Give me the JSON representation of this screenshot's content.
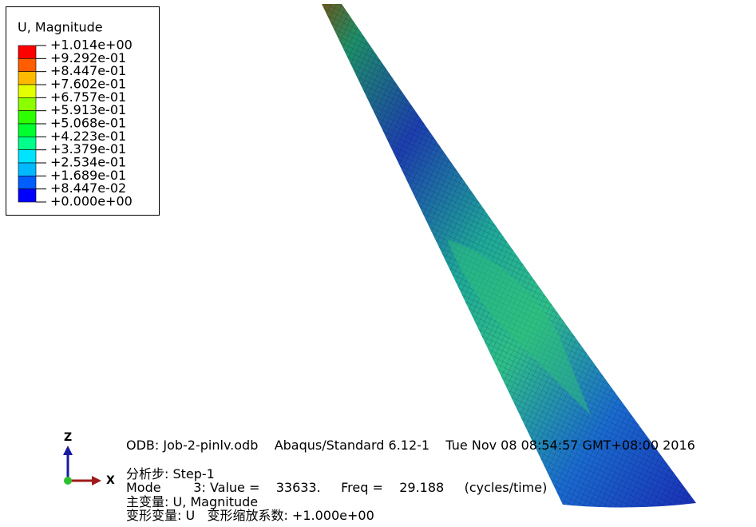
{
  "legend": {
    "title": "U, Magnitude",
    "labels": [
      "+1.014e+00",
      "+9.292e-01",
      "+8.447e-01",
      "+7.602e-01",
      "+6.757e-01",
      "+5.913e-01",
      "+5.068e-01",
      "+4.223e-01",
      "+3.379e-01",
      "+2.534e-01",
      "+1.689e-01",
      "+8.447e-02",
      "+0.000e+00"
    ],
    "colors": [
      "#ff0000",
      "#ff5d00",
      "#ffb900",
      "#e3ff00",
      "#8bff00",
      "#2eff00",
      "#00ff2e",
      "#00ff8b",
      "#00e3ff",
      "#00b9ff",
      "#005dff",
      "#0000ff"
    ]
  },
  "triad": {
    "z": "Z",
    "x": "X"
  },
  "info": {
    "odb": "ODB: Job-2-pinlv.odb    Abaqus/Standard 6.12-1    Tue Nov 08 08:54:57 GMT+08:00 2016",
    "step": "分析步: Step-1",
    "mode": "Mode        3: Value =    33633.     Freq =    29.188     (cycles/time)",
    "primary": "主变量: U, Magnitude",
    "deformed": "变形变量: U   变形缩放系数: +1.000e+00"
  }
}
